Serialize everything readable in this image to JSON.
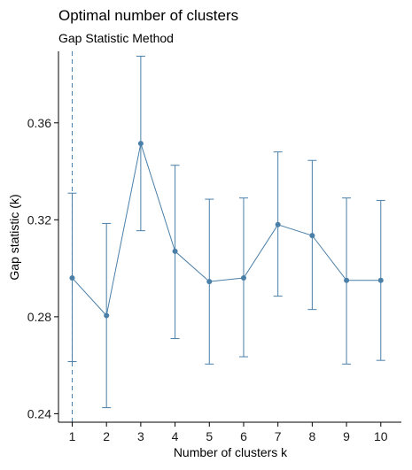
{
  "chart_data": {
    "type": "line",
    "title": "Optimal number of clusters",
    "subtitle": "Gap Statistic Method",
    "xlabel": "Number of clusters k",
    "ylabel": "Gap statistic (k)",
    "x": [
      1,
      2,
      3,
      4,
      5,
      6,
      7,
      8,
      9,
      10
    ],
    "x_ticks": [
      "1",
      "2",
      "3",
      "4",
      "5",
      "6",
      "7",
      "8",
      "9",
      "10"
    ],
    "y_ticks": [
      0.24,
      0.28,
      0.32,
      0.36
    ],
    "y_tick_labels": [
      "0.24",
      "0.28",
      "0.32",
      "0.36"
    ],
    "xlim": [
      0.6,
      10.6
    ],
    "ylim": [
      0.2365,
      0.3895
    ],
    "series": [
      {
        "values": [
          0.296,
          0.2805,
          0.3515,
          0.307,
          0.2945,
          0.296,
          0.318,
          0.3135,
          0.295,
          0.295
        ],
        "error_lower": [
          0.2615,
          0.2425,
          0.3155,
          0.271,
          0.2605,
          0.2635,
          0.2885,
          0.283,
          0.2605,
          0.262
        ],
        "error_upper": [
          0.331,
          0.3185,
          0.3875,
          0.3425,
          0.3285,
          0.329,
          0.348,
          0.3445,
          0.329,
          0.328
        ],
        "color": "#4a7fa8"
      }
    ],
    "optimal_k": 1,
    "vline_style": "dashed",
    "grid": false,
    "legend": "none"
  }
}
